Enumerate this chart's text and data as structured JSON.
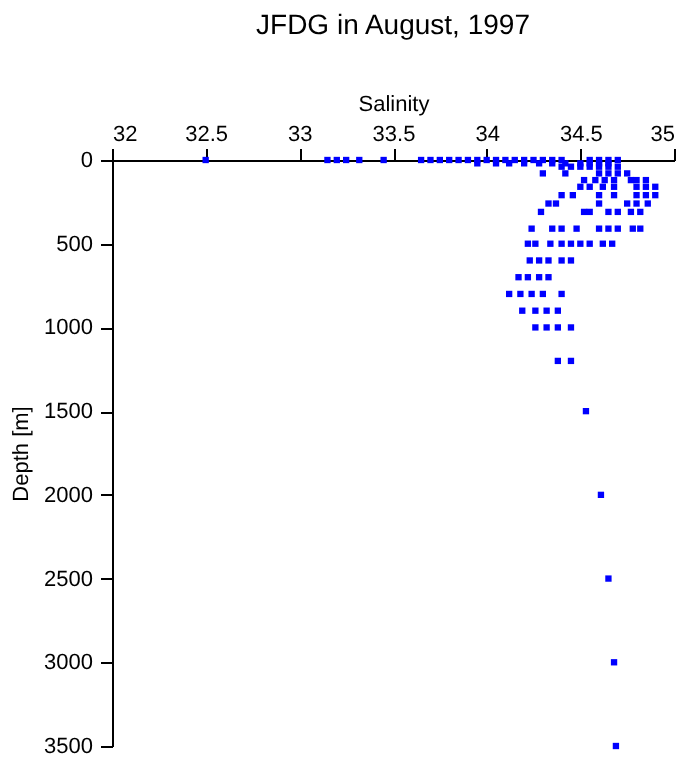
{
  "chart_data": {
    "type": "scatter",
    "title": "JFDG in August, 1997",
    "xlabel": "Salinity",
    "ylabel": "Depth [m]",
    "xlim": [
      32,
      35
    ],
    "xticks": [
      32,
      32.5,
      33,
      33.5,
      34,
      34.5,
      35
    ],
    "ylim": [
      3500,
      0
    ],
    "yticks": [
      0,
      500,
      1000,
      1500,
      2000,
      2500,
      3000,
      3500
    ],
    "grid": false,
    "marker": "square",
    "series": [
      {
        "color": "#0000ff",
        "x": [
          32.5,
          33.15,
          33.2,
          33.25,
          33.32,
          33.45,
          33.65,
          33.7,
          33.75,
          33.8,
          33.85,
          33.9,
          33.95,
          34.0,
          34.05,
          34.1,
          34.15,
          34.2,
          34.25,
          34.3,
          34.35,
          34.4,
          34.55,
          34.6,
          34.65,
          34.7,
          33.95,
          34.05,
          34.12,
          34.2,
          34.28,
          34.35,
          34.42,
          34.5,
          34.55,
          34.6,
          34.65,
          34.4,
          34.45,
          34.5,
          34.55,
          34.6,
          34.65,
          34.7,
          34.3,
          34.42,
          34.6,
          34.65,
          34.7,
          34.75,
          34.52,
          34.58,
          34.63,
          34.68,
          34.77,
          34.8,
          34.85,
          34.5,
          34.55,
          34.62,
          34.68,
          34.8,
          34.85,
          34.9,
          34.4,
          34.46,
          34.6,
          34.68,
          34.8,
          34.85,
          34.9,
          34.33,
          34.37,
          34.6,
          34.75,
          34.8,
          34.86,
          34.29,
          34.52,
          34.55,
          34.65,
          34.7,
          34.77,
          34.82,
          34.24,
          34.35,
          34.4,
          34.48,
          34.6,
          34.65,
          34.7,
          34.78,
          34.82,
          34.22,
          34.26,
          34.34,
          34.4,
          34.45,
          34.5,
          34.55,
          34.62,
          34.67,
          34.23,
          34.28,
          34.33,
          34.4,
          34.45,
          34.17,
          34.22,
          34.28,
          34.33,
          34.12,
          34.18,
          34.24,
          34.3,
          34.4,
          34.19,
          34.26,
          34.32,
          34.38,
          34.26,
          34.32,
          34.38,
          34.45,
          34.38,
          34.45,
          34.53,
          34.61,
          34.65,
          34.68,
          34.69
        ],
        "values": [
          0,
          0,
          0,
          0,
          0,
          0,
          0,
          0,
          0,
          0,
          0,
          0,
          0,
          0,
          0,
          0,
          0,
          0,
          0,
          0,
          0,
          0,
          0,
          0,
          0,
          0,
          20,
          20,
          20,
          20,
          20,
          20,
          20,
          20,
          20,
          20,
          20,
          40,
          40,
          40,
          40,
          40,
          40,
          40,
          80,
          80,
          80,
          80,
          80,
          80,
          120,
          120,
          120,
          120,
          120,
          120,
          120,
          160,
          160,
          160,
          160,
          160,
          160,
          160,
          210,
          210,
          210,
          210,
          210,
          210,
          210,
          260,
          260,
          260,
          260,
          260,
          260,
          310,
          310,
          310,
          310,
          310,
          310,
          310,
          410,
          410,
          410,
          410,
          410,
          410,
          410,
          410,
          410,
          500,
          500,
          500,
          500,
          500,
          500,
          500,
          500,
          500,
          600,
          600,
          600,
          600,
          600,
          700,
          700,
          700,
          700,
          800,
          800,
          800,
          800,
          800,
          900,
          900,
          900,
          900,
          1000,
          1000,
          1000,
          1000,
          1200,
          1200,
          1500,
          2000,
          2500,
          3000,
          3500
        ]
      }
    ]
  }
}
